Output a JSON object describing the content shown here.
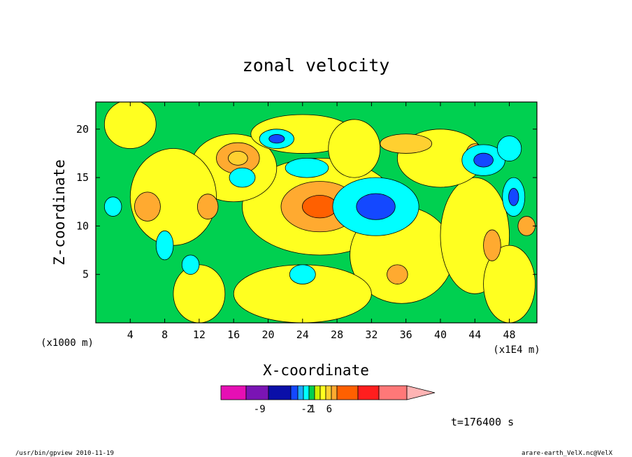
{
  "chart_data": {
    "type": "heatmap",
    "title": "zonal velocity",
    "xlabel": "X-coordinate",
    "ylabel": "Z-coordinate",
    "x_unit_note": "(x1E4 m)",
    "y_unit_note": "(x1000 m)",
    "x_ticks": [
      "4",
      "8",
      "12",
      "16",
      "20",
      "24",
      "28",
      "32",
      "36",
      "40",
      "44",
      "48"
    ],
    "x_tick_values": [
      4,
      8,
      12,
      16,
      20,
      24,
      28,
      32,
      36,
      40,
      44,
      48
    ],
    "y_ticks": [
      "5",
      "10",
      "15",
      "20"
    ],
    "y_tick_values": [
      5,
      10,
      15,
      20
    ],
    "xlim": [
      0,
      51.2
    ],
    "ylim": [
      0,
      22.8
    ],
    "colorbar": {
      "colors": [
        "#e60fb4",
        "#7a14b4",
        "#0a0fa8",
        "#1448ff",
        "#1eaaff",
        "#00ffff",
        "#00d050",
        "#cdf000",
        "#ffff20",
        "#ffd030",
        "#ffaa30",
        "#ff6000",
        "#ff1e1e",
        "#ff7878",
        "#ffb4b4"
      ],
      "labels": [
        "-9",
        "-2",
        "1",
        "6"
      ],
      "label_positions": [
        1.6,
        5.6,
        6.6,
        9.6
      ]
    },
    "blobs": [
      {
        "x": 26,
        "y": 12,
        "rx": 4.5,
        "ry": 2.6,
        "c": "#ffaa30",
        "inner": "#ff6000"
      },
      {
        "x": 16.5,
        "y": 17,
        "rx": 2.5,
        "ry": 1.6,
        "c": "#ffaa30",
        "inner": "#ffd030"
      },
      {
        "x": 13,
        "y": 12,
        "rx": 1.2,
        "ry": 1.3,
        "c": "#ffaa30"
      },
      {
        "x": 36,
        "y": 18.5,
        "rx": 3,
        "ry": 1,
        "c": "#ffd030"
      },
      {
        "x": 44,
        "y": 17.5,
        "rx": 1,
        "ry": 1,
        "c": "#ffaa30"
      },
      {
        "x": 32.5,
        "y": 12,
        "rx": 5,
        "ry": 3,
        "c": "#00ffff",
        "inner": "#1448ff"
      },
      {
        "x": 24.5,
        "y": 16,
        "rx": 2.5,
        "ry": 1,
        "c": "#00ffff"
      },
      {
        "x": 21,
        "y": 19,
        "rx": 2,
        "ry": 1,
        "c": "#00ffff",
        "inner": "#1448ff"
      },
      {
        "x": 17,
        "y": 15,
        "rx": 1.5,
        "ry": 1,
        "c": "#00ffff"
      },
      {
        "x": 45,
        "y": 16.8,
        "rx": 2.5,
        "ry": 1.6,
        "c": "#00ffff",
        "inner": "#1448ff"
      },
      {
        "x": 48.5,
        "y": 13,
        "rx": 1.3,
        "ry": 2,
        "c": "#00ffff",
        "inner": "#1448ff"
      },
      {
        "x": 48,
        "y": 18,
        "rx": 1.4,
        "ry": 1.3,
        "c": "#00ffff"
      },
      {
        "x": 24,
        "y": 5,
        "rx": 1.5,
        "ry": 1,
        "c": "#00ffff"
      },
      {
        "x": 8,
        "y": 8,
        "rx": 1,
        "ry": 1.5,
        "c": "#00ffff"
      },
      {
        "x": 11,
        "y": 6,
        "rx": 1,
        "ry": 1,
        "c": "#00ffff"
      },
      {
        "x": 2,
        "y": 12,
        "rx": 1,
        "ry": 1,
        "c": "#00ffff"
      },
      {
        "x": 35,
        "y": 5,
        "rx": 1.2,
        "ry": 1,
        "c": "#ffaa30"
      },
      {
        "x": 50,
        "y": 10,
        "rx": 1,
        "ry": 1,
        "c": "#ffaa30"
      },
      {
        "x": 46,
        "y": 8,
        "rx": 1,
        "ry": 1.6,
        "c": "#ffaa30"
      },
      {
        "x": 6,
        "y": 12,
        "rx": 1.5,
        "ry": 1.5,
        "c": "#ffaa30"
      }
    ],
    "annotation": "t=176400 s"
  },
  "footer": {
    "left": "/usr/bin/gpview   2010-11-19",
    "right": "arare-earth_VelX.nc@VelX"
  }
}
